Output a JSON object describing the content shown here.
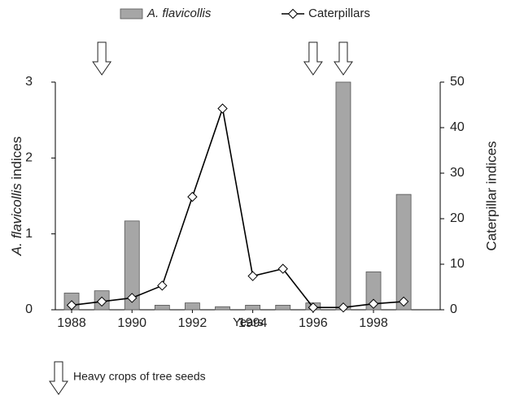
{
  "chart_data": {
    "type": "bar_line",
    "x": [
      1988,
      1989,
      1990,
      1991,
      1992,
      1993,
      1994,
      1995,
      1996,
      1997,
      1998,
      1999
    ],
    "series": [
      {
        "name": "A. flavicollis",
        "type": "bar",
        "color": "#a6a6a6",
        "axis": "y",
        "values": [
          0.22,
          0.25,
          1.17,
          0.06,
          0.09,
          0.04,
          0.06,
          0.06,
          0.09,
          3.0,
          0.5,
          1.52
        ]
      },
      {
        "name": "Caterpillars",
        "type": "line",
        "color": "#000000",
        "axis": "y2",
        "values": [
          1,
          1.8,
          2.6,
          5.3,
          24.8,
          44.2,
          7.4,
          9,
          0.5,
          0.5,
          1.3,
          1.8
        ]
      }
    ],
    "xlabel": "Years",
    "ylabel": [
      "A. flavicollis",
      " indices"
    ],
    "y2label": "Caterpillar indices",
    "xlim": [
      1987.46,
      2000.21
    ],
    "xticks": [
      1988,
      1990,
      1992,
      1994,
      1996,
      1998
    ],
    "ylim": [
      0,
      3
    ],
    "yticks": [
      0,
      1,
      2,
      3
    ],
    "y2lim": [
      0,
      50
    ],
    "y2ticks": [
      0,
      10,
      20,
      30,
      40,
      50
    ],
    "grid": false,
    "legend": "top",
    "annotation": {
      "text": "Heavy crops of tree seeds",
      "x": [
        1989,
        1996,
        1997
      ]
    }
  }
}
